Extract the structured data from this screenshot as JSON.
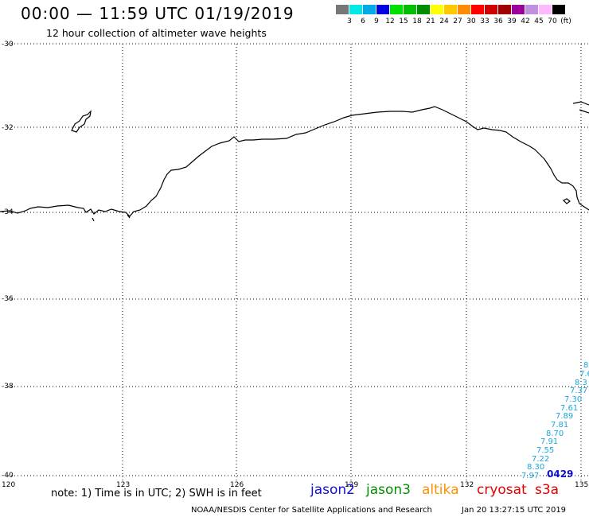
{
  "header": {
    "title": "00:00 — 11:59 UTC 01/19/2019",
    "subtitle": "12 hour collection of altimeter wave heights"
  },
  "color_scale": {
    "unit": "(ft)",
    "labels": [
      "3",
      "6",
      "9",
      "12",
      "15",
      "18",
      "21",
      "24",
      "27",
      "30",
      "33",
      "36",
      "39",
      "42",
      "45",
      "70"
    ],
    "colors": [
      "#777777",
      "#00e8e8",
      "#00a8e8",
      "#0000e0",
      "#00e000",
      "#00c000",
      "#008c00",
      "#ffff00",
      "#ffc800",
      "#ff8c00",
      "#ff0000",
      "#d00000",
      "#a00000",
      "#9c009c",
      "#c090e0",
      "#ffb8ff",
      "#000000"
    ]
  },
  "latitude_labels": [
    "-30",
    "-32",
    "-34",
    "-36",
    "-38",
    "-40"
  ],
  "longitude_labels": [
    "120",
    "123",
    "126",
    "129",
    "132",
    "135"
  ],
  "footer": {
    "note": "note: 1) Time is in UTC; 2) SWH is in feet",
    "satellites": [
      {
        "name": "jason2",
        "color": "#1010d0"
      },
      {
        "name": "jason3",
        "color": "#009000"
      },
      {
        "name": "altika",
        "color": "#ff9000"
      },
      {
        "name": "cryosat",
        "color": "#e00000"
      },
      {
        "name": "s3a",
        "color": "#e00000"
      }
    ],
    "credit": "NOAA/NESDIS Center for Satellite Applications and Research",
    "timestamp": "Jan 20 13:27:15 UTC 2019"
  },
  "wave_heights": {
    "pass_time": "0429",
    "values": [
      "8",
      "7.6",
      "8.3",
      "7.37",
      "7.30",
      "7.61",
      "7.89",
      "7.81",
      "8.70",
      "7.91",
      "7.55",
      "7.22",
      "8.30",
      "7.97"
    ]
  }
}
